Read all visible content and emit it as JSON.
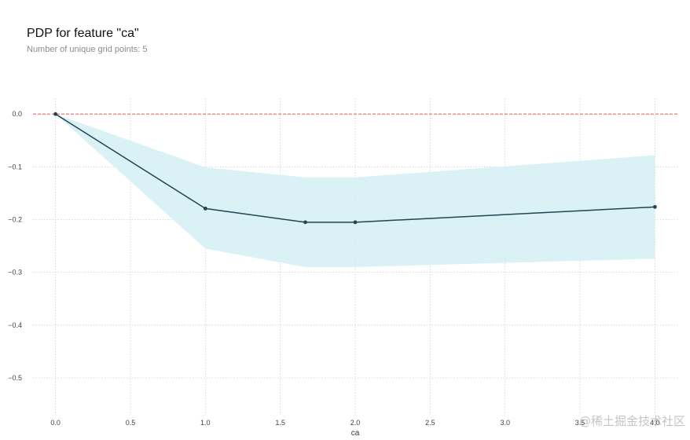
{
  "title": "PDP for feature \"ca\"",
  "subtitle": "Number of unique grid points: 5",
  "watermark": "@稀土掘金技术社区",
  "colors": {
    "line": "#1f4652",
    "band": "#d4eff5",
    "baseline": "#e05a4f",
    "grid": "#cfcfcf"
  },
  "chart_data": {
    "type": "line",
    "xlabel": "ca",
    "ylabel": "",
    "xlim": [
      -0.15,
      4.15
    ],
    "ylim": [
      -0.57,
      0.03
    ],
    "xticks": [
      0.0,
      0.5,
      1.0,
      1.5,
      2.0,
      2.5,
      3.0,
      3.5,
      4.0
    ],
    "xtick_labels": [
      "0.0",
      "0.5",
      "1.0",
      "1.5",
      "2.0",
      "2.5",
      "3.0",
      "3.5",
      "4.0"
    ],
    "yticks": [
      0.0,
      -0.1,
      -0.2,
      -0.3,
      -0.4,
      -0.5
    ],
    "ytick_labels": [
      "0.0",
      "−0.1",
      "−0.2",
      "−0.3",
      "−0.4",
      "−0.5"
    ],
    "grid": true,
    "baseline": 0.0,
    "x": [
      0.0,
      1.0,
      1.667,
      2.0,
      4.0
    ],
    "y": [
      0.0,
      -0.179,
      -0.205,
      -0.205,
      -0.176
    ],
    "upper": [
      0.0,
      -0.101,
      -0.12,
      -0.12,
      -0.078
    ],
    "lower": [
      0.0,
      -0.255,
      -0.29,
      -0.29,
      -0.274
    ]
  }
}
